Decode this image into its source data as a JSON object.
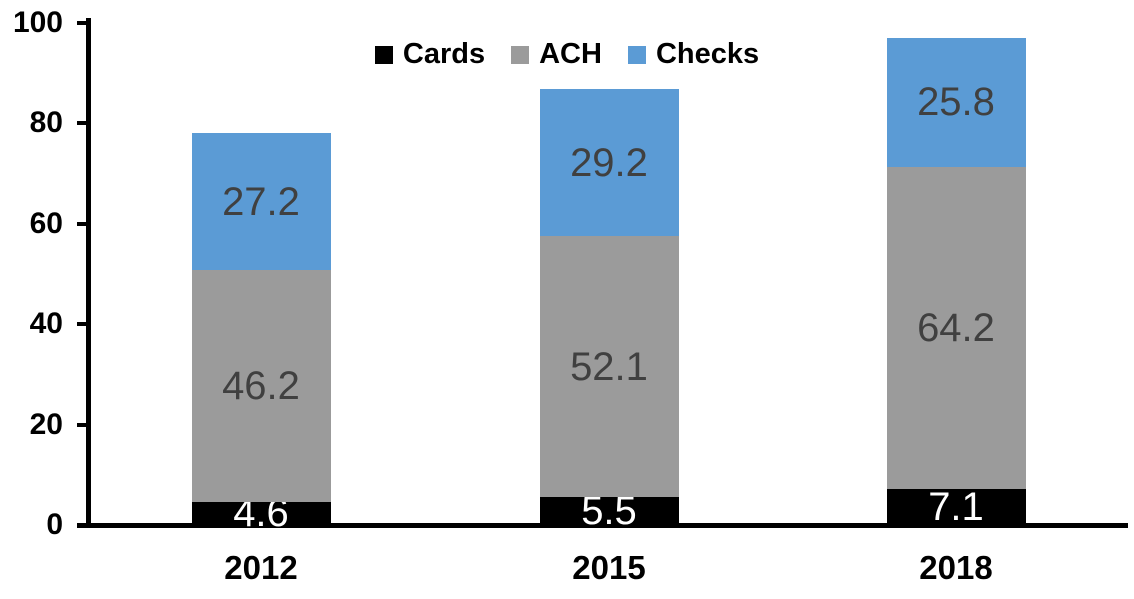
{
  "chart_data": {
    "type": "bar",
    "stacked": true,
    "categories": [
      "2012",
      "2015",
      "2018"
    ],
    "series": [
      {
        "name": "Cards",
        "color": "#000000",
        "label_color": "#FFFFFF",
        "values": [
          4.6,
          5.5,
          7.1
        ]
      },
      {
        "name": "ACH",
        "color": "#9B9B9B",
        "label_color": "#404040",
        "values": [
          46.2,
          52.1,
          64.2
        ]
      },
      {
        "name": "Checks",
        "color": "#5B9BD5",
        "label_color": "#404040",
        "values": [
          27.2,
          29.2,
          25.8
        ]
      }
    ],
    "y_ticks": [
      0,
      20,
      40,
      60,
      80,
      100
    ],
    "ylim": [
      0,
      100
    ],
    "legend_position": "top-center",
    "grid": false,
    "axis_color": "#000000",
    "background_color": "#FFFFFF"
  }
}
